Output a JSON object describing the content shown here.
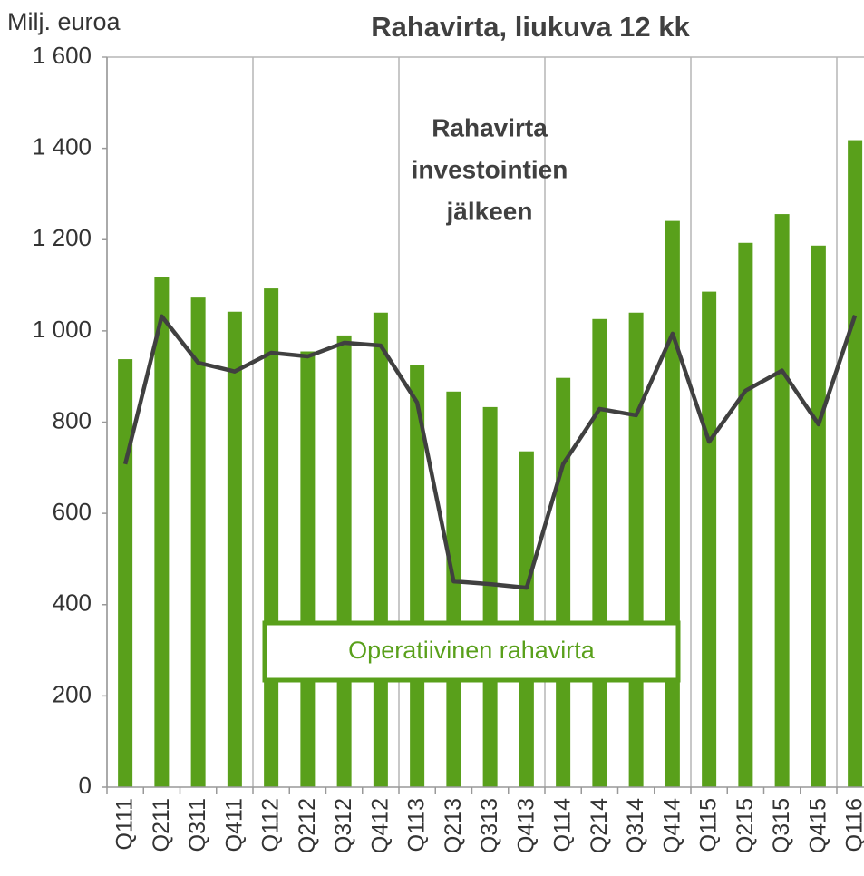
{
  "chart_data": {
    "type": "bar_line",
    "title": "Rahavirta, liukuva 12 kk",
    "y_axis_label": "Milj. euroa",
    "categories": [
      "Q111",
      "Q211",
      "Q311",
      "Q411",
      "Q112",
      "Q212",
      "Q312",
      "Q412",
      "Q113",
      "Q213",
      "Q313",
      "Q413",
      "Q114",
      "Q214",
      "Q314",
      "Q414",
      "Q115",
      "Q215",
      "Q315",
      "Q415",
      "Q116"
    ],
    "series": [
      {
        "name": "Operatiivinen rahavirta",
        "kind": "bar",
        "color": "#59a01b",
        "values": [
          938,
          1117,
          1073,
          1042,
          1093,
          955,
          990,
          1040,
          925,
          867,
          833,
          736,
          897,
          1026,
          1040,
          1241,
          1086,
          1193,
          1256,
          1187,
          1418
        ]
      },
      {
        "name": [
          "Rahavirta",
          "investointien",
          "jälkeen"
        ],
        "kind": "line",
        "color": "#404040",
        "values": [
          708,
          1032,
          930,
          911,
          952,
          944,
          974,
          968,
          843,
          451,
          445,
          437,
          708,
          829,
          815,
          994,
          757,
          869,
          913,
          795,
          1034
        ]
      }
    ],
    "ylim": [
      0,
      1600
    ],
    "yticks": [
      0,
      200,
      400,
      600,
      800,
      {
        "value": 1000,
        "label": "1 000"
      },
      {
        "value": 1200,
        "label": "1 200"
      },
      {
        "value": 1400,
        "label": "1 400"
      },
      {
        "value": 1600,
        "label": "1 600"
      }
    ],
    "vertical_grid_every": 4
  }
}
